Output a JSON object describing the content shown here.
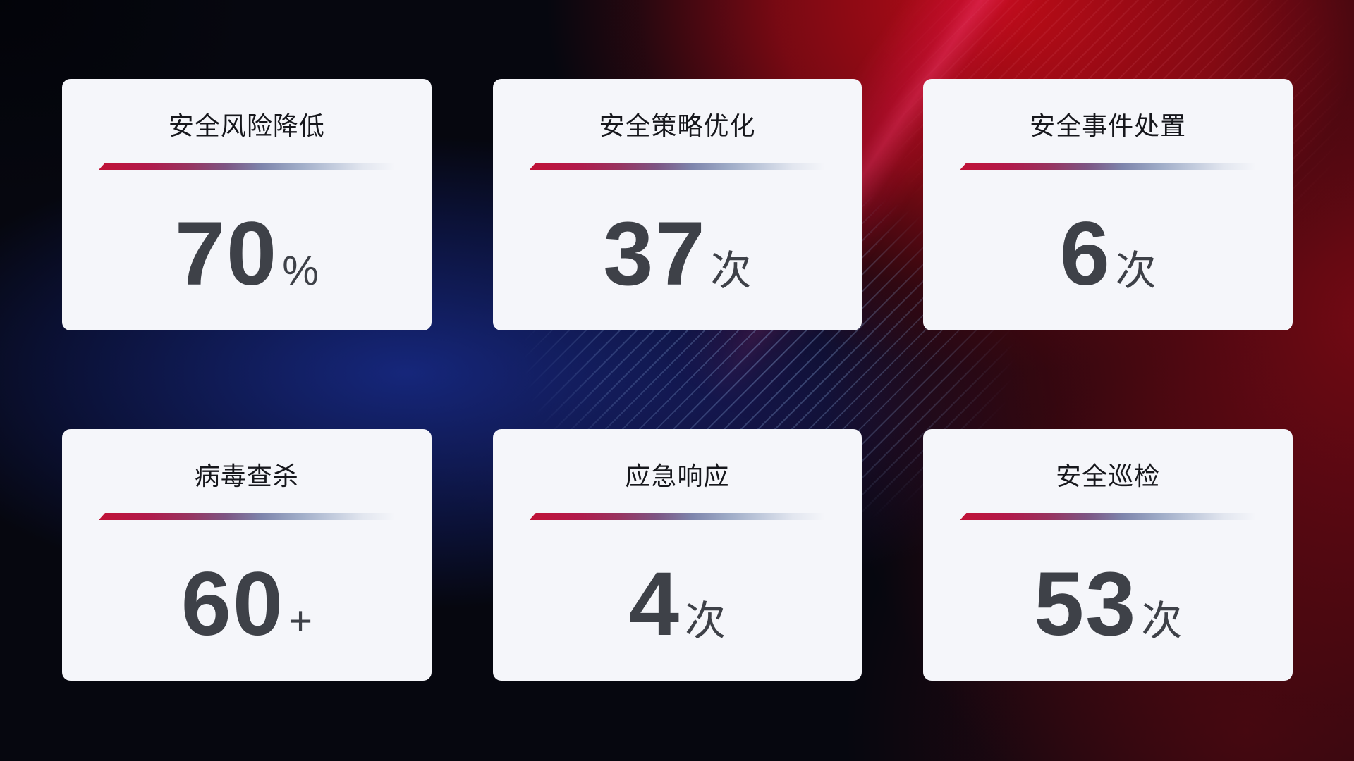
{
  "theme": {
    "background_base": "#06070f",
    "background_red_glow": "#c00c18",
    "background_blue_glow": "#172984",
    "card_background": "#f5f6fa",
    "title_color": "#16171c",
    "value_color": "#3e4148",
    "divider_red": "#c01236",
    "divider_blue_gray": "#c2cbdd"
  },
  "cards": [
    {
      "title": "安全风险降低",
      "value": "70",
      "unit": "%"
    },
    {
      "title": "安全策略优化",
      "value": "37",
      "unit": "次"
    },
    {
      "title": "安全事件处置",
      "value": "6",
      "unit": "次"
    },
    {
      "title": "病毒查杀",
      "value": "60",
      "unit": "+"
    },
    {
      "title": "应急响应",
      "value": "4",
      "unit": "次"
    },
    {
      "title": "安全巡检",
      "value": "53",
      "unit": "次"
    }
  ]
}
